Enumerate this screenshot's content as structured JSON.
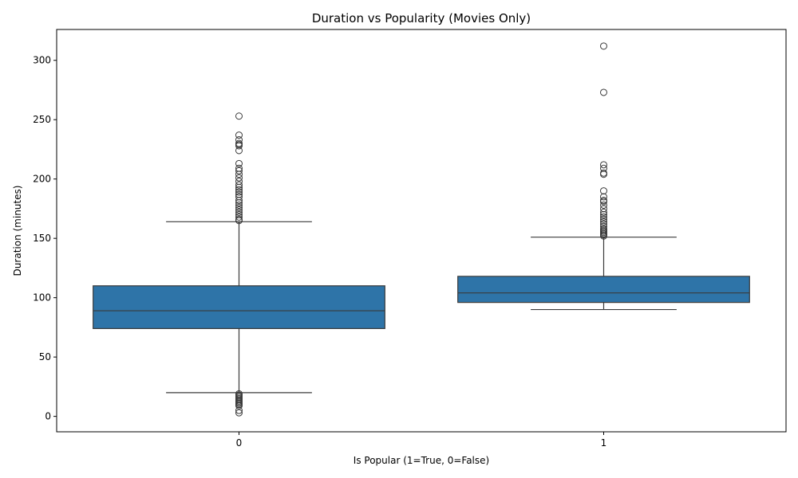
{
  "chart_data": {
    "type": "boxplot",
    "title": "Duration vs Popularity (Movies Only)",
    "xlabel": "Is Popular (1=True, 0=False)",
    "ylabel": "Duration (minutes)",
    "ylim": [
      -13,
      326
    ],
    "yticks": [
      0,
      50,
      100,
      150,
      200,
      250,
      300
    ],
    "categories": [
      "0",
      "1"
    ],
    "box_color": "#2e74a8",
    "line_color": "#3a3a3a",
    "grid": false,
    "boxes": [
      {
        "category": "0",
        "whisker_low": 20,
        "q1": 74,
        "median": 89,
        "q3": 110,
        "whisker_high": 164,
        "outliers": [
          253,
          237,
          233,
          230,
          229,
          228,
          224,
          213,
          209,
          207,
          204,
          201,
          198,
          195,
          193,
          191,
          189,
          187,
          185,
          182,
          180,
          178,
          176,
          174,
          172,
          170,
          168,
          166,
          165,
          19,
          18,
          17,
          16,
          15,
          14,
          13,
          12,
          11,
          10,
          9,
          5,
          3
        ]
      },
      {
        "category": "1",
        "whisker_low": 90,
        "q1": 96,
        "median": 104,
        "q3": 118,
        "whisker_high": 151,
        "outliers": [
          312,
          273,
          212,
          209,
          205,
          204,
          190,
          185,
          182,
          181,
          178,
          175,
          172,
          170,
          168,
          166,
          164,
          162,
          160,
          158,
          157,
          156,
          155,
          154,
          153,
          152
        ]
      }
    ]
  }
}
